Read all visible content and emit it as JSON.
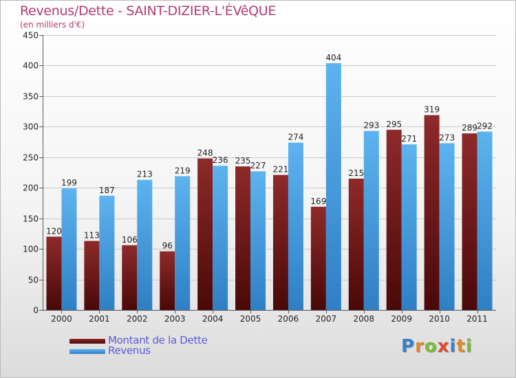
{
  "header": {
    "title": "Revenus/Dette - SAINT-DIZIER-L'ÉVêQUE",
    "subtitle": "(en milliers d'€)"
  },
  "legend": {
    "items": [
      {
        "label": "Montant de la Dette",
        "color": "#7a1a1a"
      },
      {
        "label": "Revenus",
        "color": "#4a9fdf"
      }
    ]
  },
  "logo": {
    "text": "Proxiti",
    "letters": [
      {
        "ch": "P",
        "color": "#3a7fc9"
      },
      {
        "ch": "r",
        "color": "#e08a2b"
      },
      {
        "ch": "o",
        "color": "#7cba3a"
      },
      {
        "ch": "x",
        "color": "#e04a2b"
      },
      {
        "ch": "i",
        "color": "#3a7fc9"
      },
      {
        "ch": "t",
        "color": "#e08a2b"
      },
      {
        "ch": "i",
        "color": "#7cba3a"
      }
    ]
  },
  "chart_data": {
    "type": "bar",
    "title": "Revenus/Dette - SAINT-DIZIER-L'ÉVêQUE",
    "subtitle": "(en milliers d'€)",
    "xlabel": "",
    "ylabel": "",
    "ylim": [
      0,
      450
    ],
    "yticks": [
      0,
      50,
      100,
      150,
      200,
      250,
      300,
      350,
      400,
      450
    ],
    "grid": true,
    "legend_position": "bottom-left",
    "categories": [
      "2000",
      "2001",
      "2002",
      "2003",
      "2004",
      "2005",
      "2006",
      "2007",
      "2008",
      "2009",
      "2010",
      "2011"
    ],
    "series": [
      {
        "name": "Montant de la Dette",
        "color": "#7a1a1a",
        "values": [
          120,
          113,
          106,
          96,
          248,
          235,
          221,
          169,
          215,
          295,
          319,
          289
        ]
      },
      {
        "name": "Revenus",
        "color": "#4a9fdf",
        "values": [
          199,
          187,
          213,
          219,
          236,
          227,
          274,
          404,
          293,
          271,
          273,
          292
        ]
      }
    ]
  }
}
